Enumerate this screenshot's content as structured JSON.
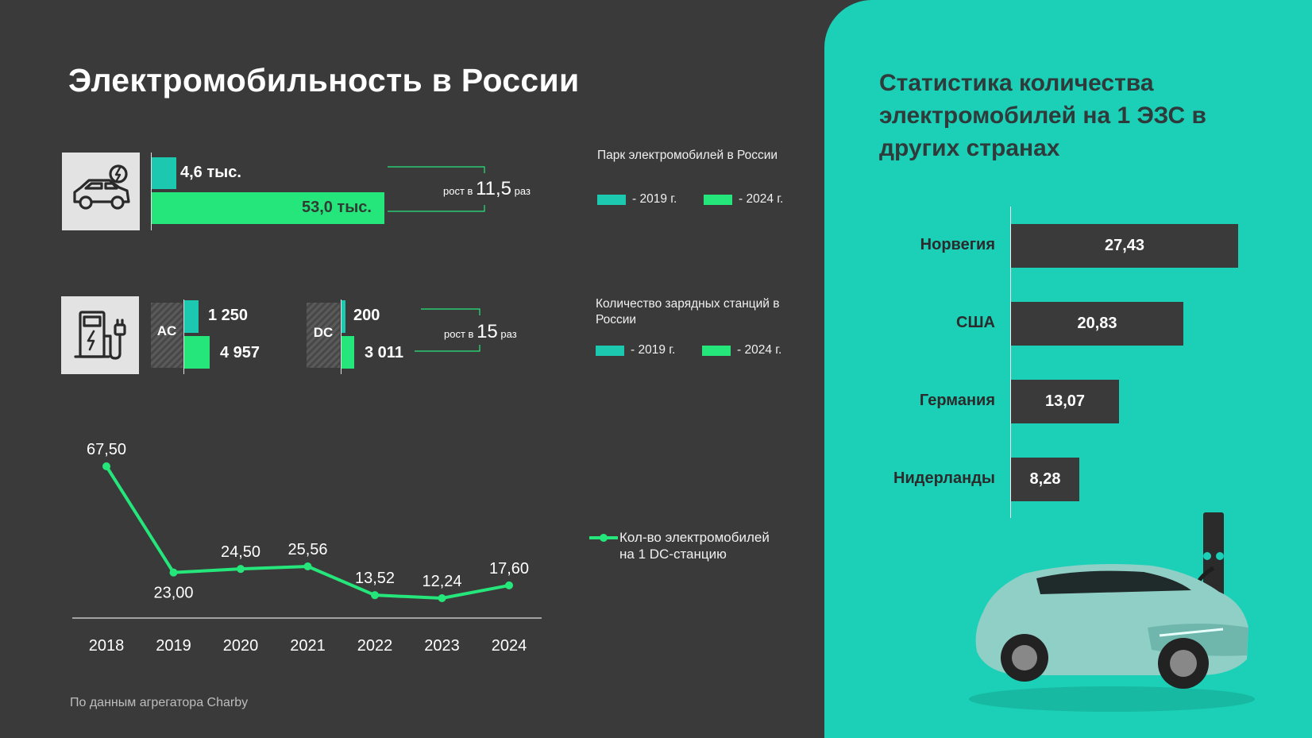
{
  "title": "Электромобильность в России",
  "source": "По данным агрегатора Charby",
  "colors": {
    "bg": "#3a3a3a",
    "teal": "#1cc9b0",
    "green": "#25e67a",
    "panel": "#1cd0b8"
  },
  "fleet": {
    "icon": "electric-car-icon",
    "value_2019_label": "4,6 тыс.",
    "value_2024_label": "53,0 тыс.",
    "value_2019": 4.6,
    "value_2024": 53.0,
    "growth_prefix": "рост в",
    "growth_value": "11,5",
    "growth_suffix": "раз",
    "legend_title": "Парк электромобилей в России",
    "legend_2019": "- 2019 г.",
    "legend_2024": "- 2024 г."
  },
  "stations": {
    "icon": "charging-station-icon",
    "ac_label": "AC",
    "ac_2019_label": "1 250",
    "ac_2024_label": "4 957",
    "dc_label": "DC",
    "dc_2019_label": "200",
    "dc_2024_label": "3 011",
    "ac_2019": 1250,
    "ac_2024": 4957,
    "dc_2019": 200,
    "dc_2024": 3011,
    "growth_prefix": "рост в",
    "growth_value": "15",
    "growth_suffix": "раз",
    "legend_title": "Количество зарядных станций в России",
    "legend_2019": "- 2019 г.",
    "legend_2024": "- 2024 г."
  },
  "chart_data": [
    {
      "type": "line",
      "categories": [
        "2018",
        "2019",
        "2020",
        "2021",
        "2022",
        "2023",
        "2024"
      ],
      "series": [
        {
          "name": "Кол-во электромобилей на 1 DC-станцию",
          "values": [
            67.5,
            23.0,
            24.5,
            25.56,
            13.52,
            12.24,
            17.6
          ],
          "labels": [
            "67,50",
            "23,00",
            "24,50",
            "25,56",
            "13,52",
            "12,24",
            "17,60"
          ]
        }
      ],
      "legend_line1": "Кол-во электромобилей",
      "legend_line2": "на 1 DC-станцию",
      "ylim": [
        0,
        70
      ],
      "color": "#25e67a"
    },
    {
      "type": "bar",
      "orientation": "horizontal",
      "title": "Статистика количества электромобилей на 1 ЭЗС в других странах",
      "categories": [
        "Норвегия",
        "США",
        "Германия",
        "Нидерланды"
      ],
      "values": [
        27.43,
        20.83,
        13.07,
        8.28
      ],
      "labels": [
        "27,43",
        "20,83",
        "13,07",
        "8,28"
      ],
      "xlim": [
        0,
        27.43
      ],
      "color": "#3a3a3a"
    }
  ]
}
